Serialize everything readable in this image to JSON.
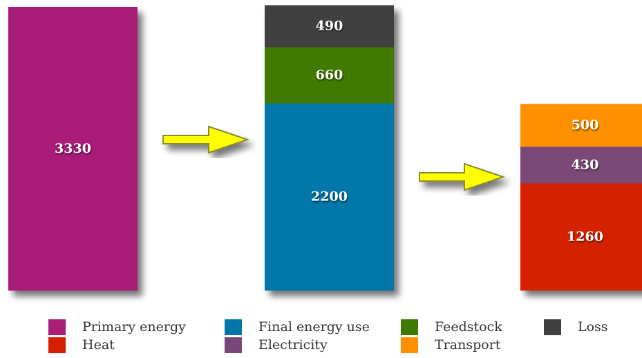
{
  "chart_data": {
    "type": "bar",
    "stacked": true,
    "title": "",
    "xlabel": "",
    "ylabel": "",
    "ylim": [
      0,
      3330
    ],
    "grid": false,
    "legend_position": "bottom",
    "bars": [
      {
        "segments": [
          {
            "name": "Primary energy",
            "value": 3330,
            "label": "3330"
          }
        ]
      },
      {
        "segments": [
          {
            "name": "Final energy use",
            "value": 2200,
            "label": "2200"
          },
          {
            "name": "Feedstock",
            "value": 660,
            "label": "660"
          },
          {
            "name": "Loss",
            "value": 490,
            "label": "490"
          }
        ]
      },
      {
        "segments": [
          {
            "name": "Heat",
            "value": 1260,
            "label": "1260"
          },
          {
            "name": "Electricity",
            "value": 430,
            "label": "430"
          },
          {
            "name": "Transport",
            "value": 500,
            "label": "500"
          }
        ]
      }
    ],
    "arrows": [
      {
        "from": 0,
        "to": 1
      },
      {
        "from": 1,
        "to": 2
      }
    ]
  },
  "colors": {
    "Primary energy": "#a81e78",
    "Final energy use": "#0077a8",
    "Feedstock": "#3f7a00",
    "Loss": "#404040",
    "Heat": "#d42000",
    "Electricity": "#7a4878",
    "Transport": "#ff9100",
    "arrow_fill": "#ffff00",
    "arrow_stroke": "#8a8a30"
  },
  "legend": {
    "rows": [
      [
        "Primary energy",
        "Final energy use",
        "Feedstock",
        "Loss"
      ],
      [
        "Heat",
        "Electricity",
        "Transport"
      ]
    ]
  }
}
